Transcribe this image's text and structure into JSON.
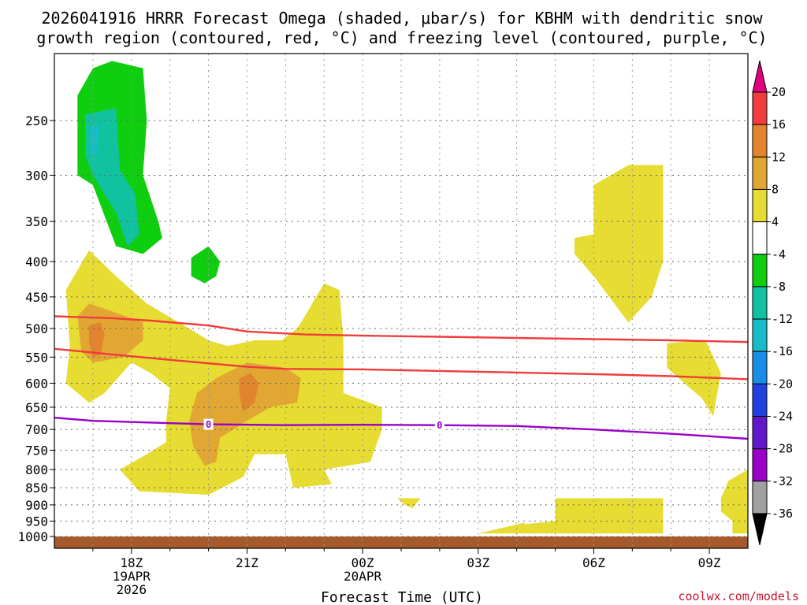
{
  "title_line1": "2026041916 HRRR Forecast Omega (shaded, μbar/s) for KBHM with dendritic snow",
  "title_line2": "growth region (contoured, red, °C) and freezing level (contoured, purple, °C)",
  "credit": "coolwx.com/models",
  "colors": {
    "green": "#0fcd0f",
    "teal": "#10c2a0",
    "cyan": "#18bcc8",
    "yellow": "#e6dc32",
    "light_orange": "#e2a732",
    "orange": "#e2832d",
    "red_contour": "#f03c3c",
    "purple_contour": "#9a00c8",
    "ground": "#a65a2c",
    "grid": "#555555"
  },
  "chart_data": {
    "type": "heatmap",
    "title": "2026041916 HRRR Forecast Omega (shaded, μbar/s) for KBHM with dendritic snow growth region (contoured, red, °C) and freezing level (contoured, purple, °C)",
    "xlabel": "Forecast Time (UTC)",
    "ylabel": "",
    "x_ticks": [
      {
        "hour": 18,
        "label": "18Z",
        "date": "19APR",
        "year": "2026"
      },
      {
        "hour": 21,
        "label": "21Z",
        "date": "",
        "year": ""
      },
      {
        "hour": 24,
        "label": "00Z",
        "date": "20APR",
        "year": ""
      },
      {
        "hour": 27,
        "label": "03Z",
        "date": "",
        "year": ""
      },
      {
        "hour": 30,
        "label": "06Z",
        "date": "",
        "year": ""
      },
      {
        "hour": 33,
        "label": "09Z",
        "date": "",
        "year": ""
      }
    ],
    "xlim": [
      16,
      34
    ],
    "y_ticks": [
      250,
      300,
      350,
      400,
      450,
      500,
      550,
      600,
      650,
      700,
      750,
      800,
      850,
      900,
      950,
      1000
    ],
    "ylim": [
      1000,
      200
    ],
    "y_scale": "log-pressure",
    "ground_level_hPa": 1000,
    "colorbar": {
      "ticks": [
        "20",
        "16",
        "12",
        "8",
        "4",
        "-4",
        "-8",
        "-12",
        "-16",
        "-20",
        "-24",
        "-28",
        "-32",
        "-36"
      ],
      "colors": [
        "#e0007e",
        "#f03c3c",
        "#e2832d",
        "#e2a732",
        "#e6dc32",
        "#ffffff",
        "#0fcd0f",
        "#10c2a0",
        "#18bcc8",
        "#1a8ee6",
        "#2040e0",
        "#6018c8",
        "#9a00c8",
        "#a0a0a0",
        "#000000"
      ]
    },
    "shaded_regions": [
      {
        "level": "-8 to -4",
        "color": "#0fcd0f",
        "points": [
          [
            17.0,
            210
          ],
          [
            17.5,
            205
          ],
          [
            18.3,
            210
          ],
          [
            18.4,
            250
          ],
          [
            18.3,
            300
          ],
          [
            18.7,
            350
          ],
          [
            18.8,
            370
          ],
          [
            18.3,
            390
          ],
          [
            17.6,
            380
          ],
          [
            17.0,
            310
          ],
          [
            16.6,
            300
          ],
          [
            16.6,
            230
          ]
        ]
      },
      {
        "level": "-12 to -8",
        "color": "#10c2a0",
        "points": [
          [
            16.8,
            245
          ],
          [
            17.6,
            240
          ],
          [
            17.7,
            295
          ],
          [
            18.1,
            320
          ],
          [
            18.2,
            365
          ],
          [
            17.9,
            380
          ],
          [
            17.6,
            340
          ],
          [
            17.0,
            300
          ],
          [
            16.8,
            280
          ]
        ]
      },
      {
        "level": "-16 to -12",
        "color": "#18bcc8",
        "points": [
          [
            16.95,
            255
          ],
          [
            17.15,
            255
          ],
          [
            17.1,
            280
          ],
          [
            16.95,
            280
          ]
        ]
      },
      {
        "level": "-8 to -4",
        "color": "#0fcd0f",
        "points": [
          [
            19.55,
            395
          ],
          [
            20.0,
            380
          ],
          [
            20.3,
            400
          ],
          [
            20.2,
            420
          ],
          [
            19.9,
            430
          ],
          [
            19.55,
            420
          ]
        ]
      },
      {
        "level": "4 to 8",
        "color": "#e6dc32",
        "points": [
          [
            16.3,
            440
          ],
          [
            16.9,
            385
          ],
          [
            17.6,
            420
          ],
          [
            18.4,
            460
          ],
          [
            19.5,
            500
          ],
          [
            20.0,
            520
          ],
          [
            20.5,
            530
          ],
          [
            21.2,
            520
          ],
          [
            21.9,
            520
          ],
          [
            22.3,
            500
          ],
          [
            22.5,
            480
          ],
          [
            23.0,
            430
          ],
          [
            23.4,
            440
          ],
          [
            23.5,
            520
          ],
          [
            23.5,
            620
          ],
          [
            24.5,
            650
          ],
          [
            24.5,
            700
          ],
          [
            24.2,
            780
          ],
          [
            23.0,
            800
          ],
          [
            23.2,
            840
          ],
          [
            22.2,
            850
          ],
          [
            22.0,
            760
          ],
          [
            21.2,
            760
          ],
          [
            20.9,
            820
          ],
          [
            20.0,
            870
          ],
          [
            18.2,
            860
          ],
          [
            17.7,
            800
          ],
          [
            18.4,
            760
          ],
          [
            18.9,
            730
          ],
          [
            18.9,
            680
          ],
          [
            19.0,
            610
          ],
          [
            18.5,
            580
          ],
          [
            18.0,
            560
          ],
          [
            17.3,
            620
          ],
          [
            16.9,
            640
          ],
          [
            16.3,
            600
          ],
          [
            16.4,
            530
          ]
        ]
      },
      {
        "level": "8 to 12",
        "color": "#e2a732",
        "points": [
          [
            16.6,
            480
          ],
          [
            16.9,
            460
          ],
          [
            17.4,
            470
          ],
          [
            18.3,
            490
          ],
          [
            18.3,
            520
          ],
          [
            17.8,
            550
          ],
          [
            17.0,
            560
          ],
          [
            16.7,
            540
          ]
        ]
      },
      {
        "level": "12 to 16",
        "color": "#e2832d",
        "points": [
          [
            16.9,
            495
          ],
          [
            17.2,
            490
          ],
          [
            17.3,
            510
          ],
          [
            17.2,
            545
          ],
          [
            17.0,
            550
          ],
          [
            16.9,
            525
          ]
        ]
      },
      {
        "level": "8 to 12",
        "color": "#e2a732",
        "points": [
          [
            19.7,
            620
          ],
          [
            20.2,
            590
          ],
          [
            21.0,
            560
          ],
          [
            22.0,
            570
          ],
          [
            22.4,
            590
          ],
          [
            22.3,
            640
          ],
          [
            21.6,
            650
          ],
          [
            21.0,
            680
          ],
          [
            20.3,
            720
          ],
          [
            20.2,
            780
          ],
          [
            19.9,
            790
          ],
          [
            19.6,
            740
          ],
          [
            19.5,
            680
          ]
        ]
      },
      {
        "level": "12 to 16",
        "color": "#e2832d",
        "points": [
          [
            20.8,
            590
          ],
          [
            21.1,
            580
          ],
          [
            21.3,
            600
          ],
          [
            21.2,
            640
          ],
          [
            20.9,
            660
          ],
          [
            20.8,
            620
          ]
        ]
      },
      {
        "level": "4 to 8",
        "color": "#e6dc32",
        "points": [
          [
            24.9,
            880
          ],
          [
            25.5,
            880
          ],
          [
            25.3,
            910
          ],
          [
            25.1,
            900
          ]
        ]
      },
      {
        "level": "4 to 8",
        "color": "#e6dc32",
        "points": [
          [
            27.0,
            990
          ],
          [
            28.2,
            955
          ],
          [
            28.2,
            960
          ],
          [
            29.0,
            950
          ],
          [
            29.0,
            880
          ],
          [
            31.8,
            880
          ],
          [
            31.8,
            990
          ]
        ]
      },
      {
        "level": "4 to 8",
        "color": "#e6dc32",
        "points": [
          [
            30.0,
            310
          ],
          [
            30.9,
            290
          ],
          [
            31.8,
            290
          ],
          [
            31.8,
            400
          ],
          [
            31.5,
            450
          ],
          [
            30.9,
            490
          ],
          [
            30.0,
            420
          ],
          [
            29.5,
            390
          ],
          [
            29.5,
            370
          ],
          [
            30.0,
            365
          ]
        ]
      },
      {
        "level": "4 to 8",
        "color": "#e6dc32",
        "points": [
          [
            31.9,
            525
          ],
          [
            32.9,
            520
          ],
          [
            33.3,
            580
          ],
          [
            33.1,
            670
          ],
          [
            32.8,
            630
          ],
          [
            32.5,
            610
          ],
          [
            31.9,
            570
          ]
        ]
      },
      {
        "level": "4 to 8",
        "color": "#e6dc32",
        "points": [
          [
            33.3,
            880
          ],
          [
            33.5,
            830
          ],
          [
            34.0,
            800
          ],
          [
            34.0,
            990
          ],
          [
            33.6,
            990
          ],
          [
            33.6,
            950
          ],
          [
            33.3,
            920
          ]
        ]
      }
    ],
    "red_contours": [
      {
        "x": [
          16.0,
          17.5,
          18.5,
          20.0,
          21.0,
          22.5,
          24.0,
          26.0,
          28.0,
          30.0,
          32.0,
          34.0
        ],
        "p": [
          480,
          483,
          487,
          495,
          505,
          510,
          512,
          514,
          516,
          518,
          520,
          523
        ]
      },
      {
        "x": [
          16.0,
          17.5,
          19.0,
          21.0,
          22.0,
          24.0,
          26.0,
          28.0,
          30.0,
          32.0,
          34.0
        ],
        "p": [
          535,
          545,
          555,
          568,
          572,
          573,
          576,
          579,
          582,
          586,
          592
        ]
      }
    ],
    "purple_contours": [
      {
        "x": [
          16.0,
          17.0,
          18.5,
          20.0,
          22.0,
          24.0,
          26.0,
          28.0,
          30.0,
          32.0,
          34.0
        ],
        "p": [
          673,
          680,
          684,
          688,
          690,
          689,
          690,
          692,
          700,
          710,
          722
        ],
        "labels": [
          {
            "x": 20.0,
            "text": "0"
          },
          {
            "x": 26.0,
            "text": "0"
          }
        ]
      }
    ]
  }
}
